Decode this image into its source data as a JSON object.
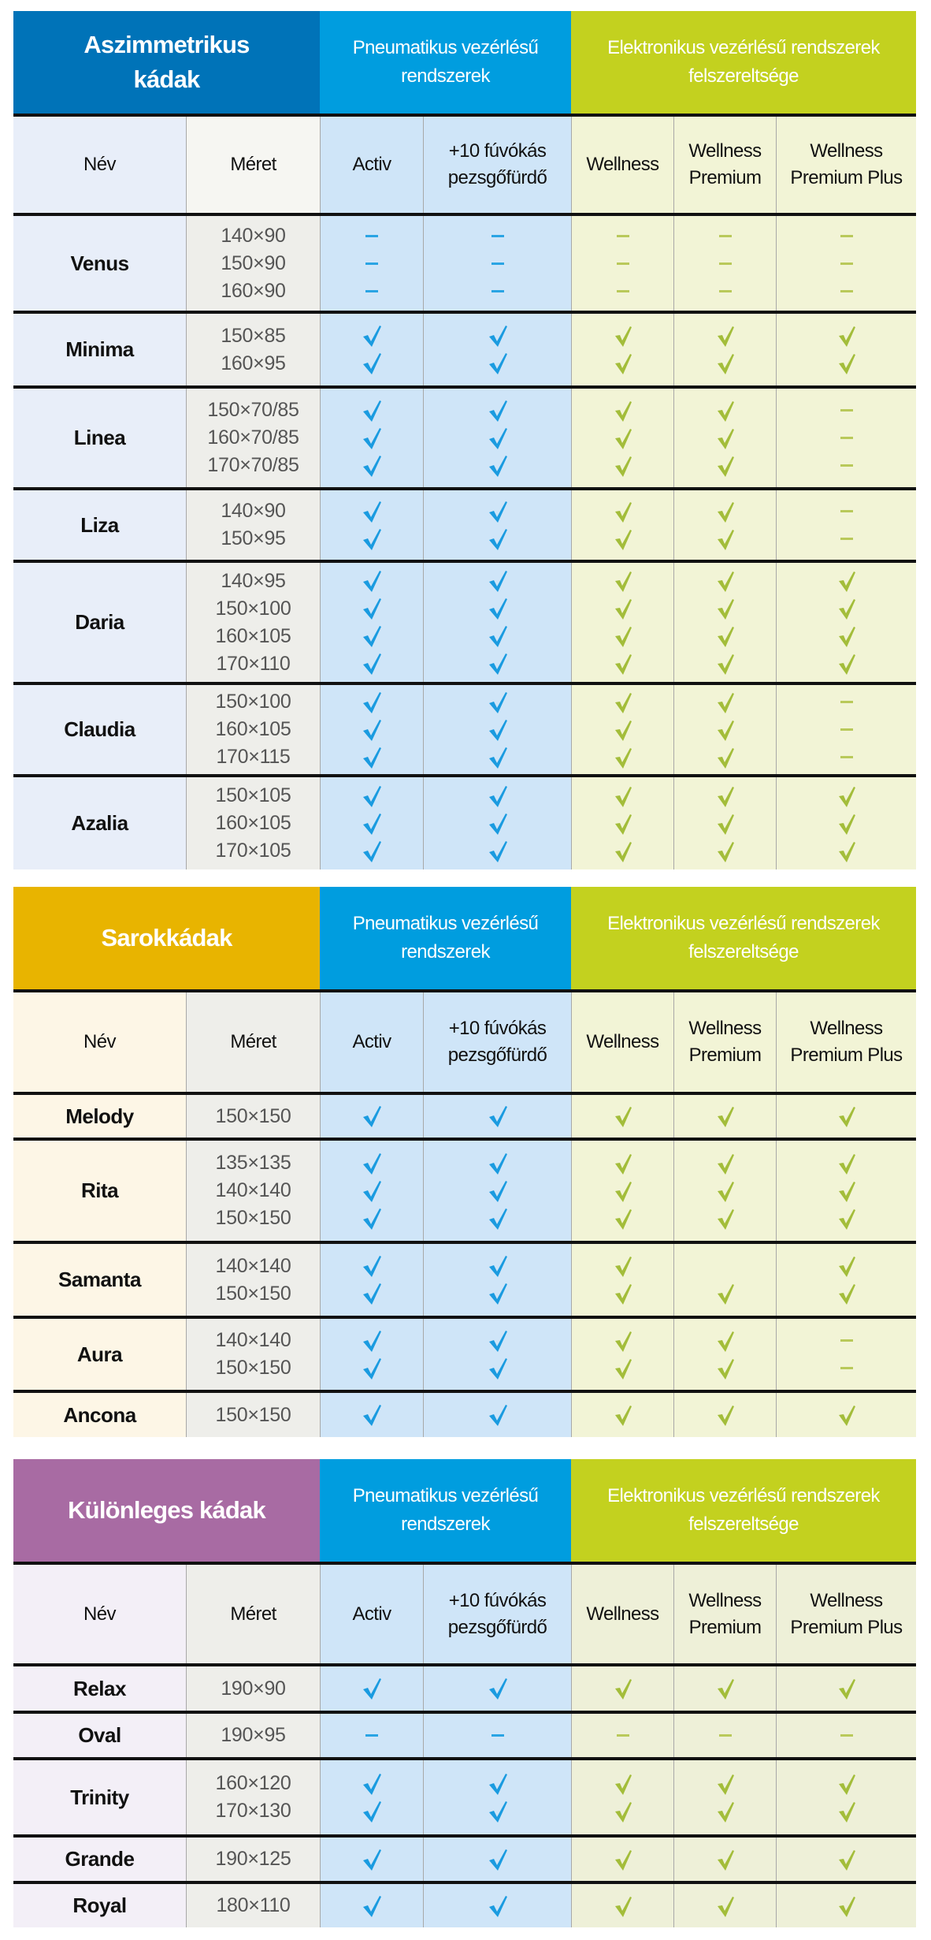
{
  "columns": {
    "name": "Név",
    "size": "Méret",
    "activ": "Activ",
    "pezsgo_line1": "+10 fúvókás",
    "pezsgo_line2": "pezsgőfürdő",
    "wellness": "Wellness",
    "wellness_premium_line1": "Wellness",
    "wellness_premium_line2": "Premium",
    "wellness_premium_plus_line1": "Wellness",
    "wellness_premium_plus_line2": "Premium Plus"
  },
  "groups": {
    "pneumatic_line1": "Pneumatikus vezérlésű",
    "pneumatic_line2": "rendszerek",
    "electronic_line1": "Elektronikus vezérlésű rendszerek",
    "electronic_line2": "felszereltsége"
  },
  "colors": {
    "asymmetric_header": "#0073b8",
    "corner_header": "#e8b400",
    "special_header": "#a86ba3",
    "pneumatic_header": "#009ddf",
    "electronic_header": "#c3d11f",
    "pneumatic_check": "#1a9be0",
    "electronic_check": "#a3bd3a"
  },
  "legend": {
    "check": "available",
    "dash": "not available",
    "blank": "not marked"
  },
  "tables": [
    {
      "title_line1": "Aszimmetrikus",
      "title_line2": "kádak",
      "rows": [
        {
          "name": "Venus",
          "sizes": [
            "140×90",
            "150×90",
            "160×90"
          ],
          "activ": [
            "-",
            "-",
            "-"
          ],
          "pezsgo": [
            "-",
            "-",
            "-"
          ],
          "wellness": [
            "-",
            "-",
            "-"
          ],
          "premium": [
            "-",
            "-",
            "-"
          ],
          "premium_plus": [
            "-",
            "-",
            "-"
          ]
        },
        {
          "name": "Minima",
          "sizes": [
            "150×85",
            "160×95"
          ],
          "activ": [
            "✓",
            "✓"
          ],
          "pezsgo": [
            "✓",
            "✓"
          ],
          "wellness": [
            "✓",
            "✓"
          ],
          "premium": [
            "✓",
            "✓"
          ],
          "premium_plus": [
            "✓",
            "✓"
          ]
        },
        {
          "name": "Linea",
          "sizes": [
            "150×70/85",
            "160×70/85",
            "170×70/85"
          ],
          "activ": [
            "✓",
            "✓",
            "✓"
          ],
          "pezsgo": [
            "✓",
            "✓",
            "✓"
          ],
          "wellness": [
            "✓",
            "✓",
            "✓"
          ],
          "premium": [
            "✓",
            "✓",
            "✓"
          ],
          "premium_plus": [
            "-",
            "-",
            "-"
          ]
        },
        {
          "name": "Liza",
          "sizes": [
            "140×90",
            "150×95"
          ],
          "activ": [
            "✓",
            "✓"
          ],
          "pezsgo": [
            "✓",
            "✓"
          ],
          "wellness": [
            "✓",
            "✓"
          ],
          "premium": [
            "✓",
            "✓"
          ],
          "premium_plus": [
            "-",
            "-"
          ]
        },
        {
          "name": "Daria",
          "sizes": [
            "140×95",
            "150×100",
            "160×105",
            "170×110"
          ],
          "activ": [
            "✓",
            "✓",
            "✓",
            "✓"
          ],
          "pezsgo": [
            "✓",
            "✓",
            "✓",
            "✓"
          ],
          "wellness": [
            "✓",
            "✓",
            "✓",
            "✓"
          ],
          "premium": [
            "✓",
            "✓",
            "✓",
            "✓"
          ],
          "premium_plus": [
            "✓",
            "✓",
            "✓",
            "✓"
          ]
        },
        {
          "name": "Claudia",
          "sizes": [
            "150×100",
            "160×105",
            "170×115"
          ],
          "activ": [
            "✓",
            "✓",
            "✓"
          ],
          "pezsgo": [
            "✓",
            "✓",
            "✓"
          ],
          "wellness": [
            "✓",
            "✓",
            "✓"
          ],
          "premium": [
            "✓",
            "✓",
            "✓"
          ],
          "premium_plus": [
            "-",
            "-",
            "-"
          ]
        },
        {
          "name": "Azalia",
          "sizes": [
            "150×105",
            "160×105",
            "170×105"
          ],
          "activ": [
            "✓",
            "✓",
            "✓"
          ],
          "pezsgo": [
            "✓",
            "✓",
            "✓"
          ],
          "wellness": [
            "✓",
            "✓",
            "✓"
          ],
          "premium": [
            "✓",
            "✓",
            "✓"
          ],
          "premium_plus": [
            "✓",
            "✓",
            "✓"
          ]
        }
      ]
    },
    {
      "title_line1": "Sarokkádak",
      "title_line2": "",
      "rows": [
        {
          "name": "Melody",
          "sizes": [
            "150×150"
          ],
          "activ": [
            "✓"
          ],
          "pezsgo": [
            "✓"
          ],
          "wellness": [
            "✓"
          ],
          "premium": [
            "✓"
          ],
          "premium_plus": [
            "✓"
          ]
        },
        {
          "name": "Rita",
          "sizes": [
            "135×135",
            "140×140",
            "150×150"
          ],
          "activ": [
            "✓",
            "✓",
            "✓"
          ],
          "pezsgo": [
            "✓",
            "✓",
            "✓"
          ],
          "wellness": [
            "✓",
            "✓",
            "✓"
          ],
          "premium": [
            "✓",
            "✓",
            "✓"
          ],
          "premium_plus": [
            "✓",
            "✓",
            "✓"
          ]
        },
        {
          "name": "Samanta",
          "sizes": [
            "140×140",
            "150×150"
          ],
          "activ": [
            "✓",
            "✓"
          ],
          "pezsgo": [
            "✓",
            "✓"
          ],
          "wellness": [
            "✓",
            "✓"
          ],
          "premium": [
            "",
            "✓"
          ],
          "premium_plus": [
            "✓",
            "✓"
          ]
        },
        {
          "name": "Aura",
          "sizes": [
            "140×140",
            "150×150"
          ],
          "activ": [
            "✓",
            "✓"
          ],
          "pezsgo": [
            "✓",
            "✓"
          ],
          "wellness": [
            "✓",
            "✓"
          ],
          "premium": [
            "✓",
            "✓"
          ],
          "premium_plus": [
            "-",
            "-"
          ]
        },
        {
          "name": "Ancona",
          "sizes": [
            "150×150"
          ],
          "activ": [
            "✓"
          ],
          "pezsgo": [
            "✓"
          ],
          "wellness": [
            "✓"
          ],
          "premium": [
            "✓"
          ],
          "premium_plus": [
            "✓"
          ]
        }
      ]
    },
    {
      "title_line1": "Különleges kádak",
      "title_line2": "",
      "rows": [
        {
          "name": "Relax",
          "sizes": [
            "190×90"
          ],
          "activ": [
            "✓"
          ],
          "pezsgo": [
            "✓"
          ],
          "wellness": [
            "✓"
          ],
          "premium": [
            "✓"
          ],
          "premium_plus": [
            "✓"
          ]
        },
        {
          "name": "Oval",
          "sizes": [
            "190×95"
          ],
          "activ": [
            "-"
          ],
          "pezsgo": [
            "-"
          ],
          "wellness": [
            "-"
          ],
          "premium": [
            "-"
          ],
          "premium_plus": [
            "-"
          ]
        },
        {
          "name": "Trinity",
          "sizes": [
            "160×120",
            "170×130"
          ],
          "activ": [
            "✓",
            "✓"
          ],
          "pezsgo": [
            "✓",
            "✓"
          ],
          "wellness": [
            "✓",
            "✓"
          ],
          "premium": [
            "✓",
            "✓"
          ],
          "premium_plus": [
            "✓",
            "✓"
          ]
        },
        {
          "name": "Grande",
          "sizes": [
            "190×125"
          ],
          "activ": [
            "✓"
          ],
          "pezsgo": [
            "✓"
          ],
          "wellness": [
            "✓"
          ],
          "premium": [
            "✓"
          ],
          "premium_plus": [
            "✓"
          ]
        },
        {
          "name": "Royal",
          "sizes": [
            "180×110"
          ],
          "activ": [
            "✓"
          ],
          "pezsgo": [
            "✓"
          ],
          "wellness": [
            "✓"
          ],
          "premium": [
            "✓"
          ],
          "premium_plus": [
            "✓"
          ]
        }
      ]
    }
  ]
}
